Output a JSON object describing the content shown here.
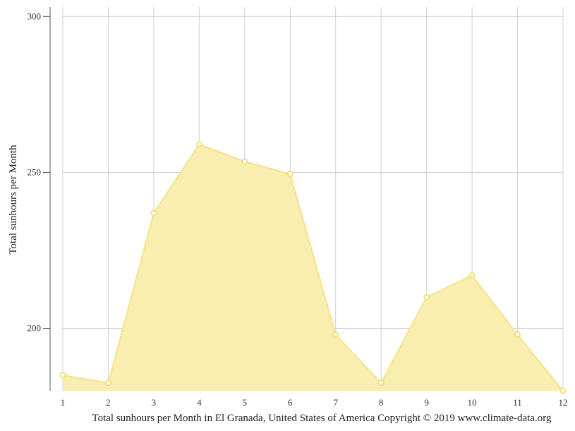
{
  "chart_data": {
    "type": "area",
    "x": [
      1,
      2,
      3,
      4,
      5,
      6,
      7,
      8,
      9,
      10,
      11,
      12
    ],
    "values": [
      185,
      182.5,
      237,
      259,
      253.5,
      249.5,
      198,
      182.5,
      210,
      217,
      198,
      180
    ],
    "xlabel": "",
    "ylabel": "Total sunhours per Month",
    "caption": "Total sunhours per Month in El Granada, United States of America Copyright © 2019 www.climate-data.org",
    "ylim": [
      180,
      303
    ],
    "y_ticks": [
      200,
      250,
      300
    ],
    "x_ticks": [
      "1",
      "2",
      "3",
      "4",
      "5",
      "6",
      "7",
      "8",
      "9",
      "10",
      "11",
      "12"
    ],
    "grid": true,
    "colors": {
      "area_fill": "#faedb0",
      "area_line": "#f7e38a",
      "point_stroke": "#f2d95a",
      "grid": "#d0d0d0",
      "axis": "#555555"
    }
  }
}
